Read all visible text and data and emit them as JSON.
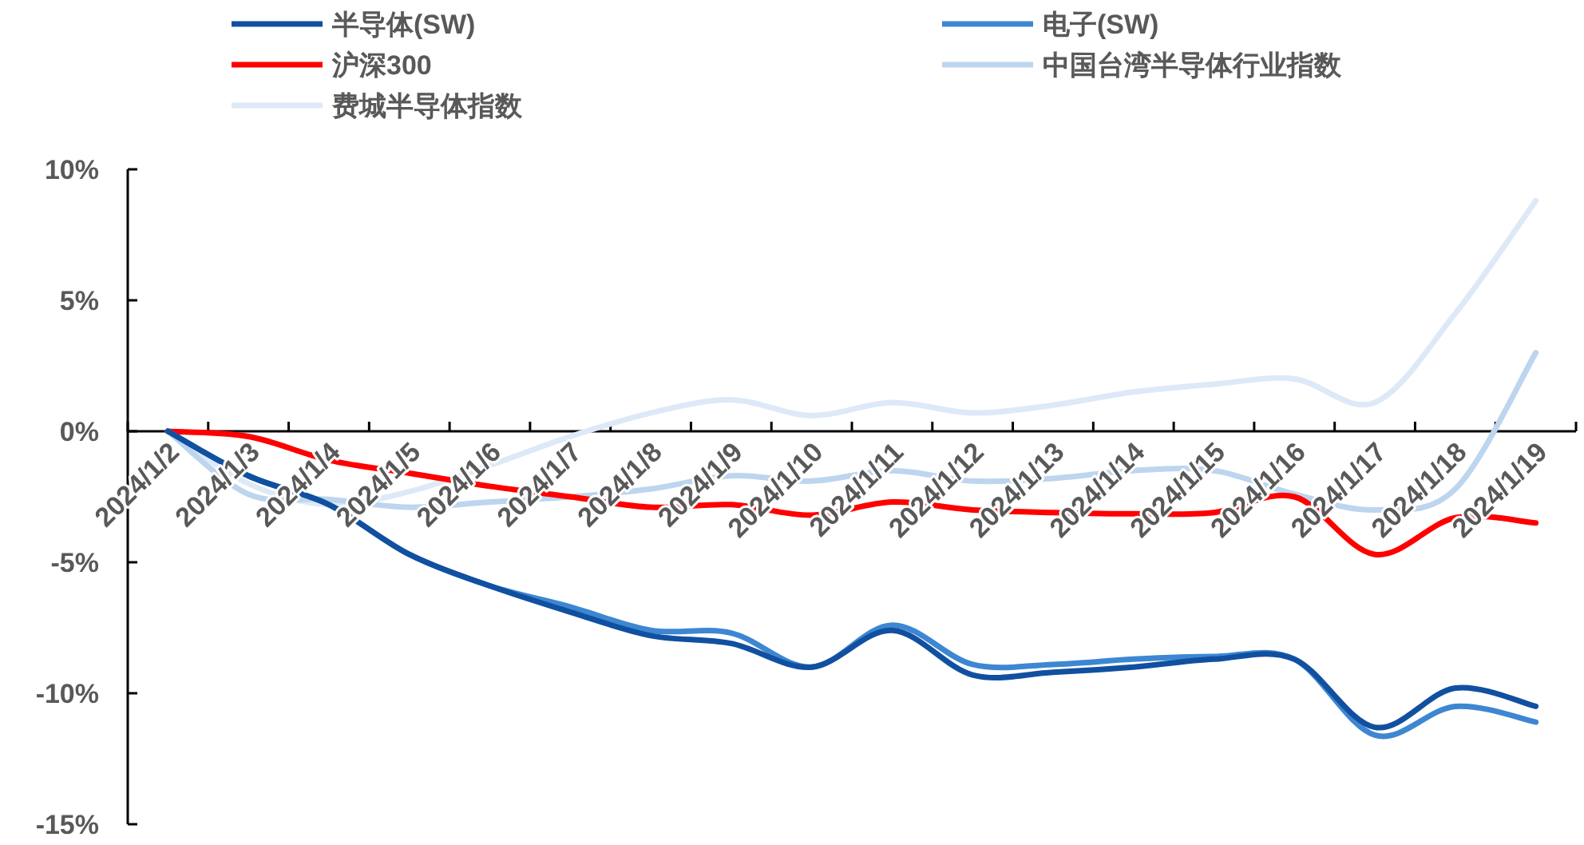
{
  "chart_data": {
    "type": "line",
    "categories": [
      "2024/1/2",
      "2024/1/3",
      "2024/1/4",
      "2024/1/5",
      "2024/1/6",
      "2024/1/7",
      "2024/1/8",
      "2024/1/9",
      "2024/1/10",
      "2024/1/11",
      "2024/1/12",
      "2024/1/13",
      "2024/1/14",
      "2024/1/15",
      "2024/1/16",
      "2024/1/17",
      "2024/1/18",
      "2024/1/19"
    ],
    "series": [
      {
        "name": "半导体(SW)",
        "color": "#1150a0",
        "values": [
          0,
          -1.7,
          -2.8,
          -4.7,
          -5.9,
          -6.9,
          -7.8,
          -8.1,
          -9.0,
          -7.6,
          -9.3,
          -9.2,
          -9.0,
          -8.7,
          -8.7,
          -11.3,
          -9.8,
          -10.5
        ]
      },
      {
        "name": "电子(SW)",
        "color": "#3d87d2",
        "values": [
          0,
          -1.7,
          -2.8,
          -4.7,
          -5.9,
          -6.7,
          -7.6,
          -7.7,
          -9.0,
          -7.4,
          -8.9,
          -8.9,
          -8.7,
          -8.6,
          -8.7,
          -11.6,
          -10.5,
          -11.1
        ]
      },
      {
        "name": "沪深300",
        "color": "#ff0000",
        "values": [
          0,
          -0.2,
          -1.1,
          -1.6,
          -2.1,
          -2.5,
          -2.9,
          -2.8,
          -3.2,
          -2.7,
          -3.0,
          -3.1,
          -3.15,
          -3.1,
          -2.5,
          -4.7,
          -3.3,
          -3.5
        ]
      },
      {
        "name": "中国台湾半导体行业指数",
        "color": "#bdd5ee",
        "values": [
          0,
          -2.4,
          -2.6,
          -2.9,
          -2.7,
          -2.5,
          -2.2,
          -1.7,
          -1.9,
          -1.5,
          -1.9,
          -1.8,
          -1.5,
          -1.5,
          -2.4,
          -3.0,
          -2.2,
          3.0
        ]
      },
      {
        "name": "费城半导体指数",
        "color": "#dde9f7",
        "values": [
          0,
          -2.0,
          -2.8,
          -2.3,
          -1.3,
          -0.2,
          0.7,
          1.2,
          0.6,
          1.1,
          0.7,
          1.0,
          1.5,
          1.8,
          2.0,
          1.1,
          4.5,
          8.8
        ]
      }
    ],
    "ylim": [
      -15,
      10
    ],
    "yticks": [
      {
        "value": 10,
        "label": "10%"
      },
      {
        "value": 5,
        "label": "5%"
      },
      {
        "value": 0,
        "label": "0%"
      },
      {
        "value": -5,
        "label": "-5%"
      },
      {
        "value": -10,
        "label": "-10%"
      },
      {
        "value": -15,
        "label": "-15%"
      }
    ],
    "legend": "top",
    "grid": false
  }
}
